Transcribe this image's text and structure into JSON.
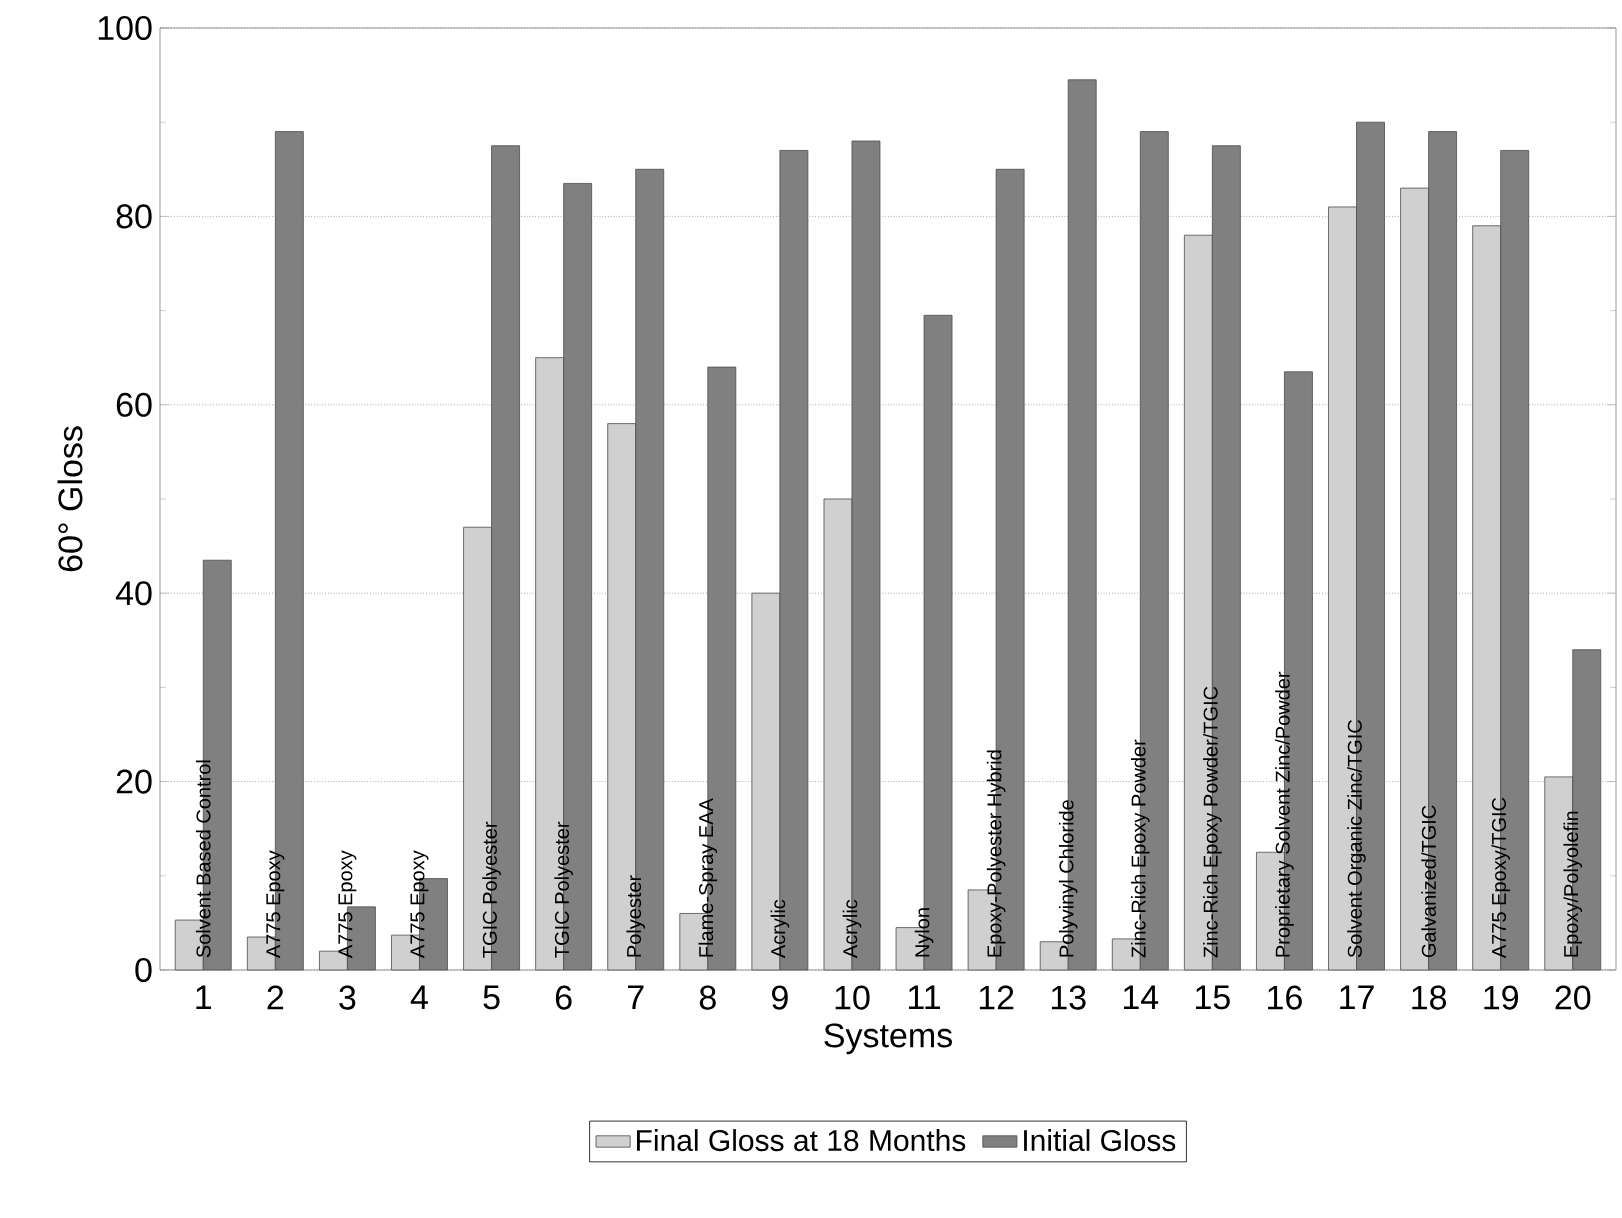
{
  "chart_data": {
    "type": "bar",
    "xlabel": "Systems",
    "ylabel": "60° Gloss",
    "categories": [
      "1",
      "2",
      "3",
      "4",
      "5",
      "6",
      "7",
      "8",
      "9",
      "10",
      "11",
      "12",
      "13",
      "14",
      "15",
      "16",
      "17",
      "18",
      "19",
      "20"
    ],
    "series": [
      {
        "name": "Final Gloss at 18 Months",
        "color": "#d0d0d0",
        "values": [
          5.3,
          3.5,
          2,
          3.7,
          47,
          65,
          58,
          6,
          40,
          50,
          4.5,
          8.5,
          3,
          3.3,
          78,
          12.5,
          81,
          83,
          79,
          20.5
        ]
      },
      {
        "name": "Initial Gloss",
        "color": "#808080",
        "values": [
          43.5,
          89,
          6.7,
          9.7,
          87.5,
          83.5,
          85,
          64,
          87,
          88,
          69.5,
          85,
          94.5,
          89,
          87.5,
          63.5,
          90,
          89,
          87,
          34
        ]
      }
    ],
    "ylim": [
      0,
      100
    ],
    "yticks": [
      0,
      20,
      40,
      60,
      80,
      100
    ],
    "grid": "y",
    "legend": "bottom",
    "annotations": [
      {
        "text": "Solvent Based Control",
        "x": "1"
      },
      {
        "text": "A775 Epoxy",
        "x": "2"
      },
      {
        "text": "A775 Epoxy",
        "x": "3"
      },
      {
        "text": "A775 Epoxy",
        "x": "4"
      },
      {
        "text": "TGIC Polyester",
        "x": "5"
      },
      {
        "text": "TGIC Polyester",
        "x": "6"
      },
      {
        "text": "Polyester",
        "x": "7"
      },
      {
        "text": "Flame-Spray EAA",
        "x": "8"
      },
      {
        "text": "Acrylic",
        "x": "9"
      },
      {
        "text": "Acrylic",
        "x": "10"
      },
      {
        "text": "Nylon",
        "x": "11"
      },
      {
        "text": "Epoxy-Polyester Hybrid",
        "x": "12"
      },
      {
        "text": "Polyvinyl Chloride",
        "x": "13"
      },
      {
        "text": "Zinc-Rich Epoxy Powder",
        "x": "14"
      },
      {
        "text": "Zinc-Rich Epoxy Powder/TGIC",
        "x": "15"
      },
      {
        "text": "Proprietary Solvent Zinc/Powder",
        "x": "16"
      },
      {
        "text": "Solvent Organic Zinc/TGIC",
        "x": "17"
      },
      {
        "text": "Galvanized/TGIC",
        "x": "18"
      },
      {
        "text": "A775 Epoxy/TGIC",
        "x": "19"
      },
      {
        "text": "Epoxy/Polyolefin",
        "x": "20"
      }
    ]
  }
}
